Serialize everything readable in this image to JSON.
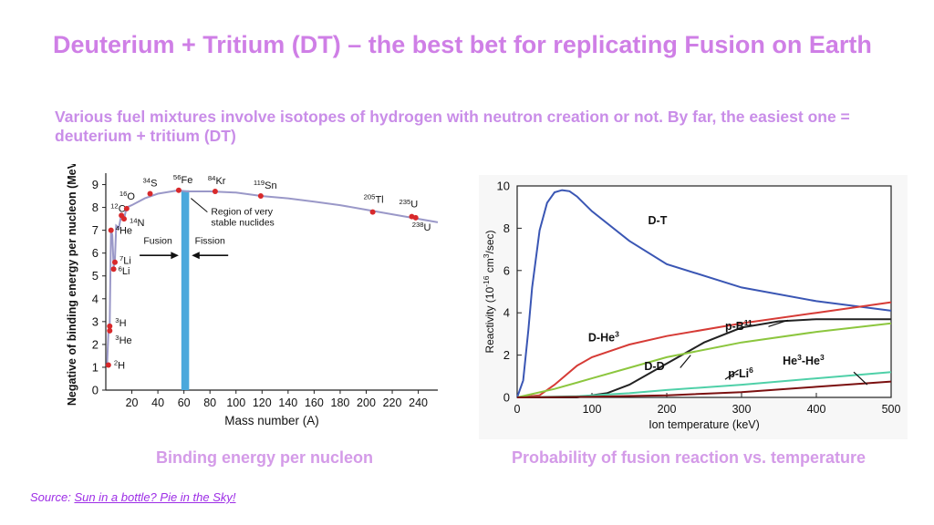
{
  "slide": {
    "title": "Deuterium + Tritium (DT) – the best bet for replicating Fusion on Earth",
    "subtitle": "Various fuel mixtures involve isotopes of hydrogen with neutron creation or not. By far, the easiest one = deuterium + tritium (DT)",
    "caption_left": "Binding energy per nucleon",
    "caption_right": "Probability of fusion reaction vs. temperature",
    "source_prefix": "Source:",
    "source_link_text": "Sun in a bottle? Pie in the Sky!",
    "colors": {
      "title": "#cf7fe6",
      "caption": "#d49be8",
      "source": "#9d2de6"
    }
  },
  "chart_data": [
    {
      "type": "scatter",
      "xlabel": "Mass number (A)",
      "ylabel": "Negative of binding energy per nucleon (MeV)",
      "xlim": [
        0,
        255
      ],
      "ylim": [
        0,
        9.5
      ],
      "xticks": [
        20,
        40,
        60,
        80,
        100,
        120,
        140,
        160,
        180,
        200,
        220,
        240
      ],
      "yticks": [
        0,
        1,
        2,
        3,
        4,
        5,
        6,
        7,
        8,
        9
      ],
      "curve": [
        [
          1,
          1.1
        ],
        [
          2,
          2.6
        ],
        [
          3,
          2.9
        ],
        [
          4,
          7.0
        ],
        [
          5,
          6.8
        ],
        [
          6,
          5.4
        ],
        [
          7,
          5.7
        ],
        [
          8,
          7.2
        ],
        [
          10,
          7.1
        ],
        [
          12,
          7.7
        ],
        [
          14,
          7.5
        ],
        [
          16,
          8.0
        ],
        [
          20,
          8.1
        ],
        [
          30,
          8.4
        ],
        [
          40,
          8.6
        ],
        [
          56,
          8.75
        ],
        [
          62,
          8.7
        ],
        [
          80,
          8.7
        ],
        [
          100,
          8.65
        ],
        [
          120,
          8.5
        ],
        [
          140,
          8.4
        ],
        [
          160,
          8.25
        ],
        [
          180,
          8.1
        ],
        [
          200,
          7.9
        ],
        [
          220,
          7.7
        ],
        [
          240,
          7.5
        ],
        [
          255,
          7.35
        ]
      ],
      "points": [
        {
          "x": 2,
          "y": 1.1,
          "sup": "2",
          "label": "H"
        },
        {
          "x": 3,
          "y": 2.6,
          "sup": "3",
          "label": "He"
        },
        {
          "x": 3,
          "y": 2.8,
          "sup": "3",
          "label": "H"
        },
        {
          "x": 4,
          "y": 7.0,
          "sup": "4",
          "label": "He"
        },
        {
          "x": 6,
          "y": 5.3,
          "sup": "6",
          "label": "Li"
        },
        {
          "x": 7,
          "y": 5.6,
          "sup": "7",
          "label": "Li"
        },
        {
          "x": 12,
          "y": 7.65,
          "sup": "12",
          "label": "C"
        },
        {
          "x": 14,
          "y": 7.5,
          "sup": "14",
          "label": "N"
        },
        {
          "x": 16,
          "y": 7.95,
          "sup": "16",
          "label": "O"
        },
        {
          "x": 34,
          "y": 8.6,
          "sup": "34",
          "label": "S"
        },
        {
          "x": 56,
          "y": 8.75,
          "sup": "56",
          "label": "Fe"
        },
        {
          "x": 84,
          "y": 8.7,
          "sup": "84",
          "label": "Kr"
        },
        {
          "x": 119,
          "y": 8.5,
          "sup": "119",
          "label": "Sn"
        },
        {
          "x": 205,
          "y": 7.8,
          "sup": "205",
          "label": "Tl"
        },
        {
          "x": 235,
          "y": 7.6,
          "sup": "235",
          "label": "U"
        },
        {
          "x": 238,
          "y": 7.55,
          "sup": "238",
          "label": "U"
        }
      ],
      "region": {
        "x_from": 58,
        "x_to": 64,
        "label_line1": "Region of very",
        "label_line2": "stable nuclides"
      },
      "fusion_label": "Fusion",
      "fission_label": "Fission",
      "colors": {
        "curve": "#9a98c8",
        "point": "#d8292b",
        "region": "#4aa8dc"
      }
    },
    {
      "type": "line",
      "xlabel": "Ion temperature (keV)",
      "ylabel": "Reactivity (10",
      "ylabel_sup1": "-16",
      "ylabel_mid": " cm",
      "ylabel_sup2": "3",
      "ylabel_end": "/sec)",
      "xlim": [
        0,
        500
      ],
      "ylim": [
        0,
        10
      ],
      "xticks": [
        0,
        100,
        200,
        300,
        400,
        500
      ],
      "yticks": [
        0,
        2,
        4,
        6,
        8,
        10
      ],
      "series": [
        {
          "name": "D-T",
          "color": "#3a56b4",
          "x": [
            0,
            8,
            15,
            20,
            30,
            40,
            50,
            60,
            70,
            80,
            100,
            150,
            200,
            300,
            400,
            500
          ],
          "y": [
            0,
            0.8,
            3.2,
            5.2,
            7.9,
            9.2,
            9.7,
            9.8,
            9.75,
            9.5,
            8.8,
            7.4,
            6.3,
            5.2,
            4.55,
            4.1
          ]
        },
        {
          "name": "D-He",
          "sup": "3",
          "color": "#d63b36",
          "x": [
            0,
            30,
            50,
            80,
            100,
            150,
            200,
            300,
            400,
            500
          ],
          "y": [
            0,
            0.1,
            0.6,
            1.5,
            1.9,
            2.5,
            2.9,
            3.5,
            4.0,
            4.5
          ]
        },
        {
          "name": "p-B",
          "sup": "11",
          "color": "#222222",
          "x": [
            0,
            80,
            120,
            150,
            200,
            250,
            300,
            350,
            400,
            450,
            500
          ],
          "y": [
            0,
            0,
            0.2,
            0.6,
            1.6,
            2.6,
            3.3,
            3.6,
            3.7,
            3.7,
            3.7
          ]
        },
        {
          "name": "D-D",
          "color": "#8cc63e",
          "x": [
            0,
            50,
            100,
            150,
            200,
            300,
            400,
            500
          ],
          "y": [
            0,
            0.4,
            0.9,
            1.4,
            1.9,
            2.6,
            3.1,
            3.5
          ]
        },
        {
          "name": "p-Li",
          "sup": "6",
          "color": "#4fd0a8",
          "x": [
            0,
            80,
            150,
            200,
            300,
            400,
            500
          ],
          "y": [
            0,
            0.05,
            0.2,
            0.35,
            0.6,
            0.9,
            1.2
          ]
        },
        {
          "name": "He",
          "sup": "3",
          "name2": "-He",
          "sup2": "3",
          "color": "#7b1010",
          "x": [
            0,
            100,
            200,
            300,
            400,
            500
          ],
          "y": [
            0,
            0.03,
            0.1,
            0.25,
            0.5,
            0.75
          ]
        }
      ],
      "colors": {
        "frame": "#222222"
      }
    }
  ]
}
